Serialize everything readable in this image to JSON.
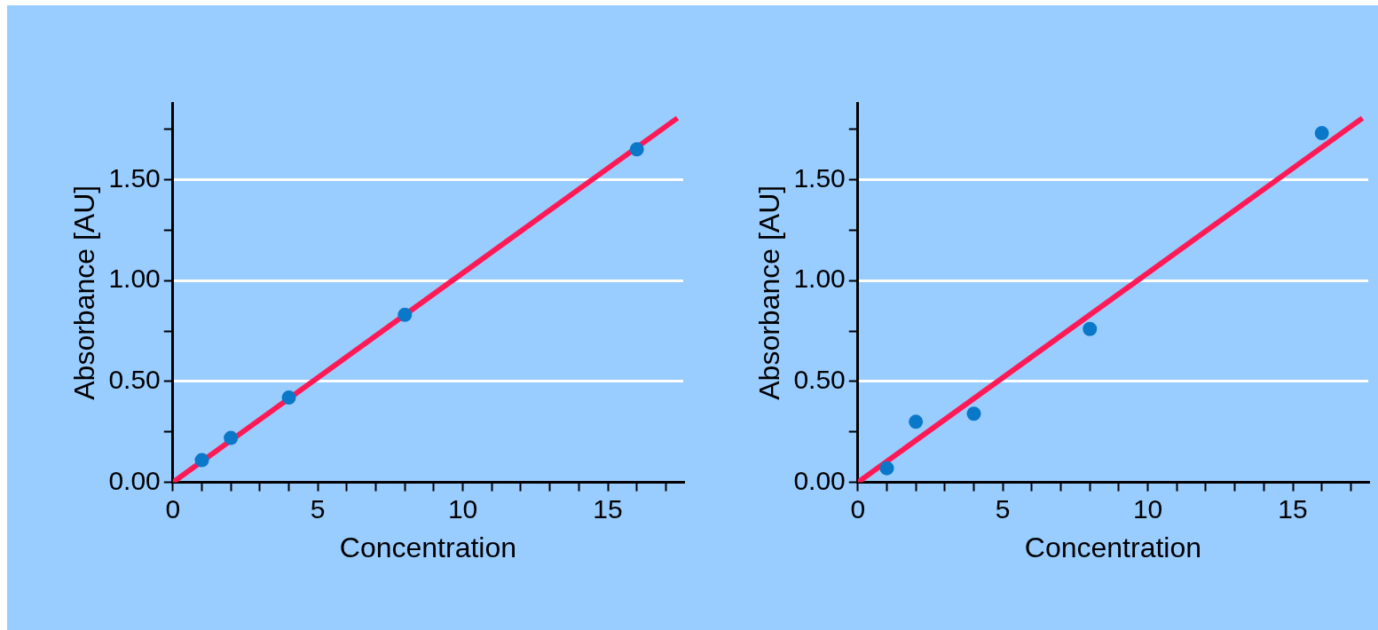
{
  "chart_data": [
    {
      "type": "scatter",
      "xlabel": "Concentration",
      "ylabel": "Absorbance [AU]",
      "xlim": [
        0,
        17.6
      ],
      "ylim": [
        0,
        1.88
      ],
      "xticks": [
        0,
        {
          "value": 1,
          "label": null
        },
        {
          "value": 2,
          "label": null
        },
        {
          "value": 3,
          "label": null
        },
        {
          "value": 4,
          "label": null
        },
        5,
        {
          "value": 6,
          "label": null
        },
        {
          "value": 7,
          "label": null
        },
        {
          "value": 8,
          "label": null
        },
        {
          "value": 9,
          "label": null
        },
        10,
        {
          "value": 11,
          "label": null
        },
        {
          "value": 12,
          "label": null
        },
        {
          "value": 13,
          "label": null
        },
        {
          "value": 14,
          "label": null
        },
        15,
        {
          "value": 16,
          "label": null
        },
        {
          "value": 17,
          "label": null
        }
      ],
      "yticks": [
        {
          "value": 0,
          "label": "0.00"
        },
        {
          "value": 0.25,
          "label": null
        },
        {
          "value": 0.5,
          "label": "0.50"
        },
        {
          "value": 0.75,
          "label": null
        },
        {
          "value": 1,
          "label": "1.00"
        },
        {
          "value": 1.25,
          "label": null
        },
        {
          "value": 1.5,
          "label": "1.50"
        },
        {
          "value": 1.75,
          "label": null
        }
      ],
      "grid": "y",
      "legend": false,
      "series": [
        {
          "type": "line",
          "color": "#ff1a55",
          "x": [
            0,
            17.4
          ],
          "values": [
            0,
            1.805
          ],
          "marker": "none",
          "line_style": "solid"
        },
        {
          "type": "scatter",
          "color": "#0a78c8",
          "x": [
            1,
            2,
            4,
            8,
            16
          ],
          "values": [
            0.11,
            0.22,
            0.42,
            0.83,
            1.65
          ],
          "marker": "circle"
        }
      ]
    },
    {
      "type": "scatter",
      "xlabel": "Concentration",
      "ylabel": "Absorbance [AU]",
      "xlim": [
        0,
        17.6
      ],
      "ylim": [
        0,
        1.88
      ],
      "xticks": [
        0,
        {
          "value": 1,
          "label": null
        },
        {
          "value": 2,
          "label": null
        },
        {
          "value": 3,
          "label": null
        },
        {
          "value": 4,
          "label": null
        },
        5,
        {
          "value": 6,
          "label": null
        },
        {
          "value": 7,
          "label": null
        },
        {
          "value": 8,
          "label": null
        },
        {
          "value": 9,
          "label": null
        },
        10,
        {
          "value": 11,
          "label": null
        },
        {
          "value": 12,
          "label": null
        },
        {
          "value": 13,
          "label": null
        },
        {
          "value": 14,
          "label": null
        },
        15,
        {
          "value": 16,
          "label": null
        },
        {
          "value": 17,
          "label": null
        }
      ],
      "yticks": [
        {
          "value": 0,
          "label": "0.00"
        },
        {
          "value": 0.25,
          "label": null
        },
        {
          "value": 0.5,
          "label": "0.50"
        },
        {
          "value": 0.75,
          "label": null
        },
        {
          "value": 1,
          "label": "1.00"
        },
        {
          "value": 1.25,
          "label": null
        },
        {
          "value": 1.5,
          "label": "1.50"
        },
        {
          "value": 1.75,
          "label": null
        }
      ],
      "grid": "y",
      "legend": false,
      "series": [
        {
          "type": "line",
          "color": "#ff1a55",
          "x": [
            0,
            17.4
          ],
          "values": [
            0,
            1.805
          ],
          "marker": "none",
          "line_style": "solid"
        },
        {
          "type": "scatter",
          "color": "#0a78c8",
          "x": [
            1,
            2,
            4,
            8,
            16
          ],
          "values": [
            0.07,
            0.3,
            0.34,
            0.76,
            1.73
          ],
          "marker": "circle"
        }
      ]
    }
  ]
}
